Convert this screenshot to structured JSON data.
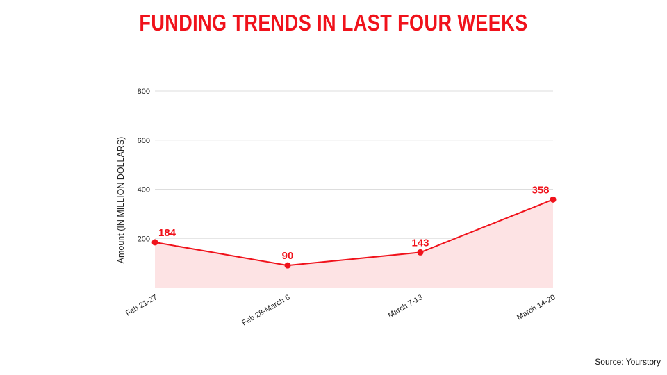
{
  "title": "FUNDING TRENDS IN LAST FOUR WEEKS",
  "source": "Source: Yourstory",
  "colors": {
    "accent": "#f0121b",
    "area_fill": "#fde3e4",
    "grid": "#dddddd"
  },
  "chart_data": {
    "type": "area",
    "title": "FUNDING TRENDS IN LAST FOUR WEEKS",
    "categories": [
      "Feb 21-27",
      "Feb 28-March 6",
      "March 7-13",
      "March 14-20"
    ],
    "values": [
      184,
      90,
      143,
      358
    ],
    "data_labels": [
      "184",
      "90",
      "143",
      "358"
    ],
    "ylabel": "Amount (IN MILLION DOLLARS)",
    "xlabel": "",
    "ylim": [
      0,
      800
    ],
    "yticks": [
      200,
      400,
      600,
      800
    ],
    "ytick_labels": [
      "200",
      "400",
      "600",
      "800"
    ],
    "grid": true,
    "legend": "none"
  }
}
